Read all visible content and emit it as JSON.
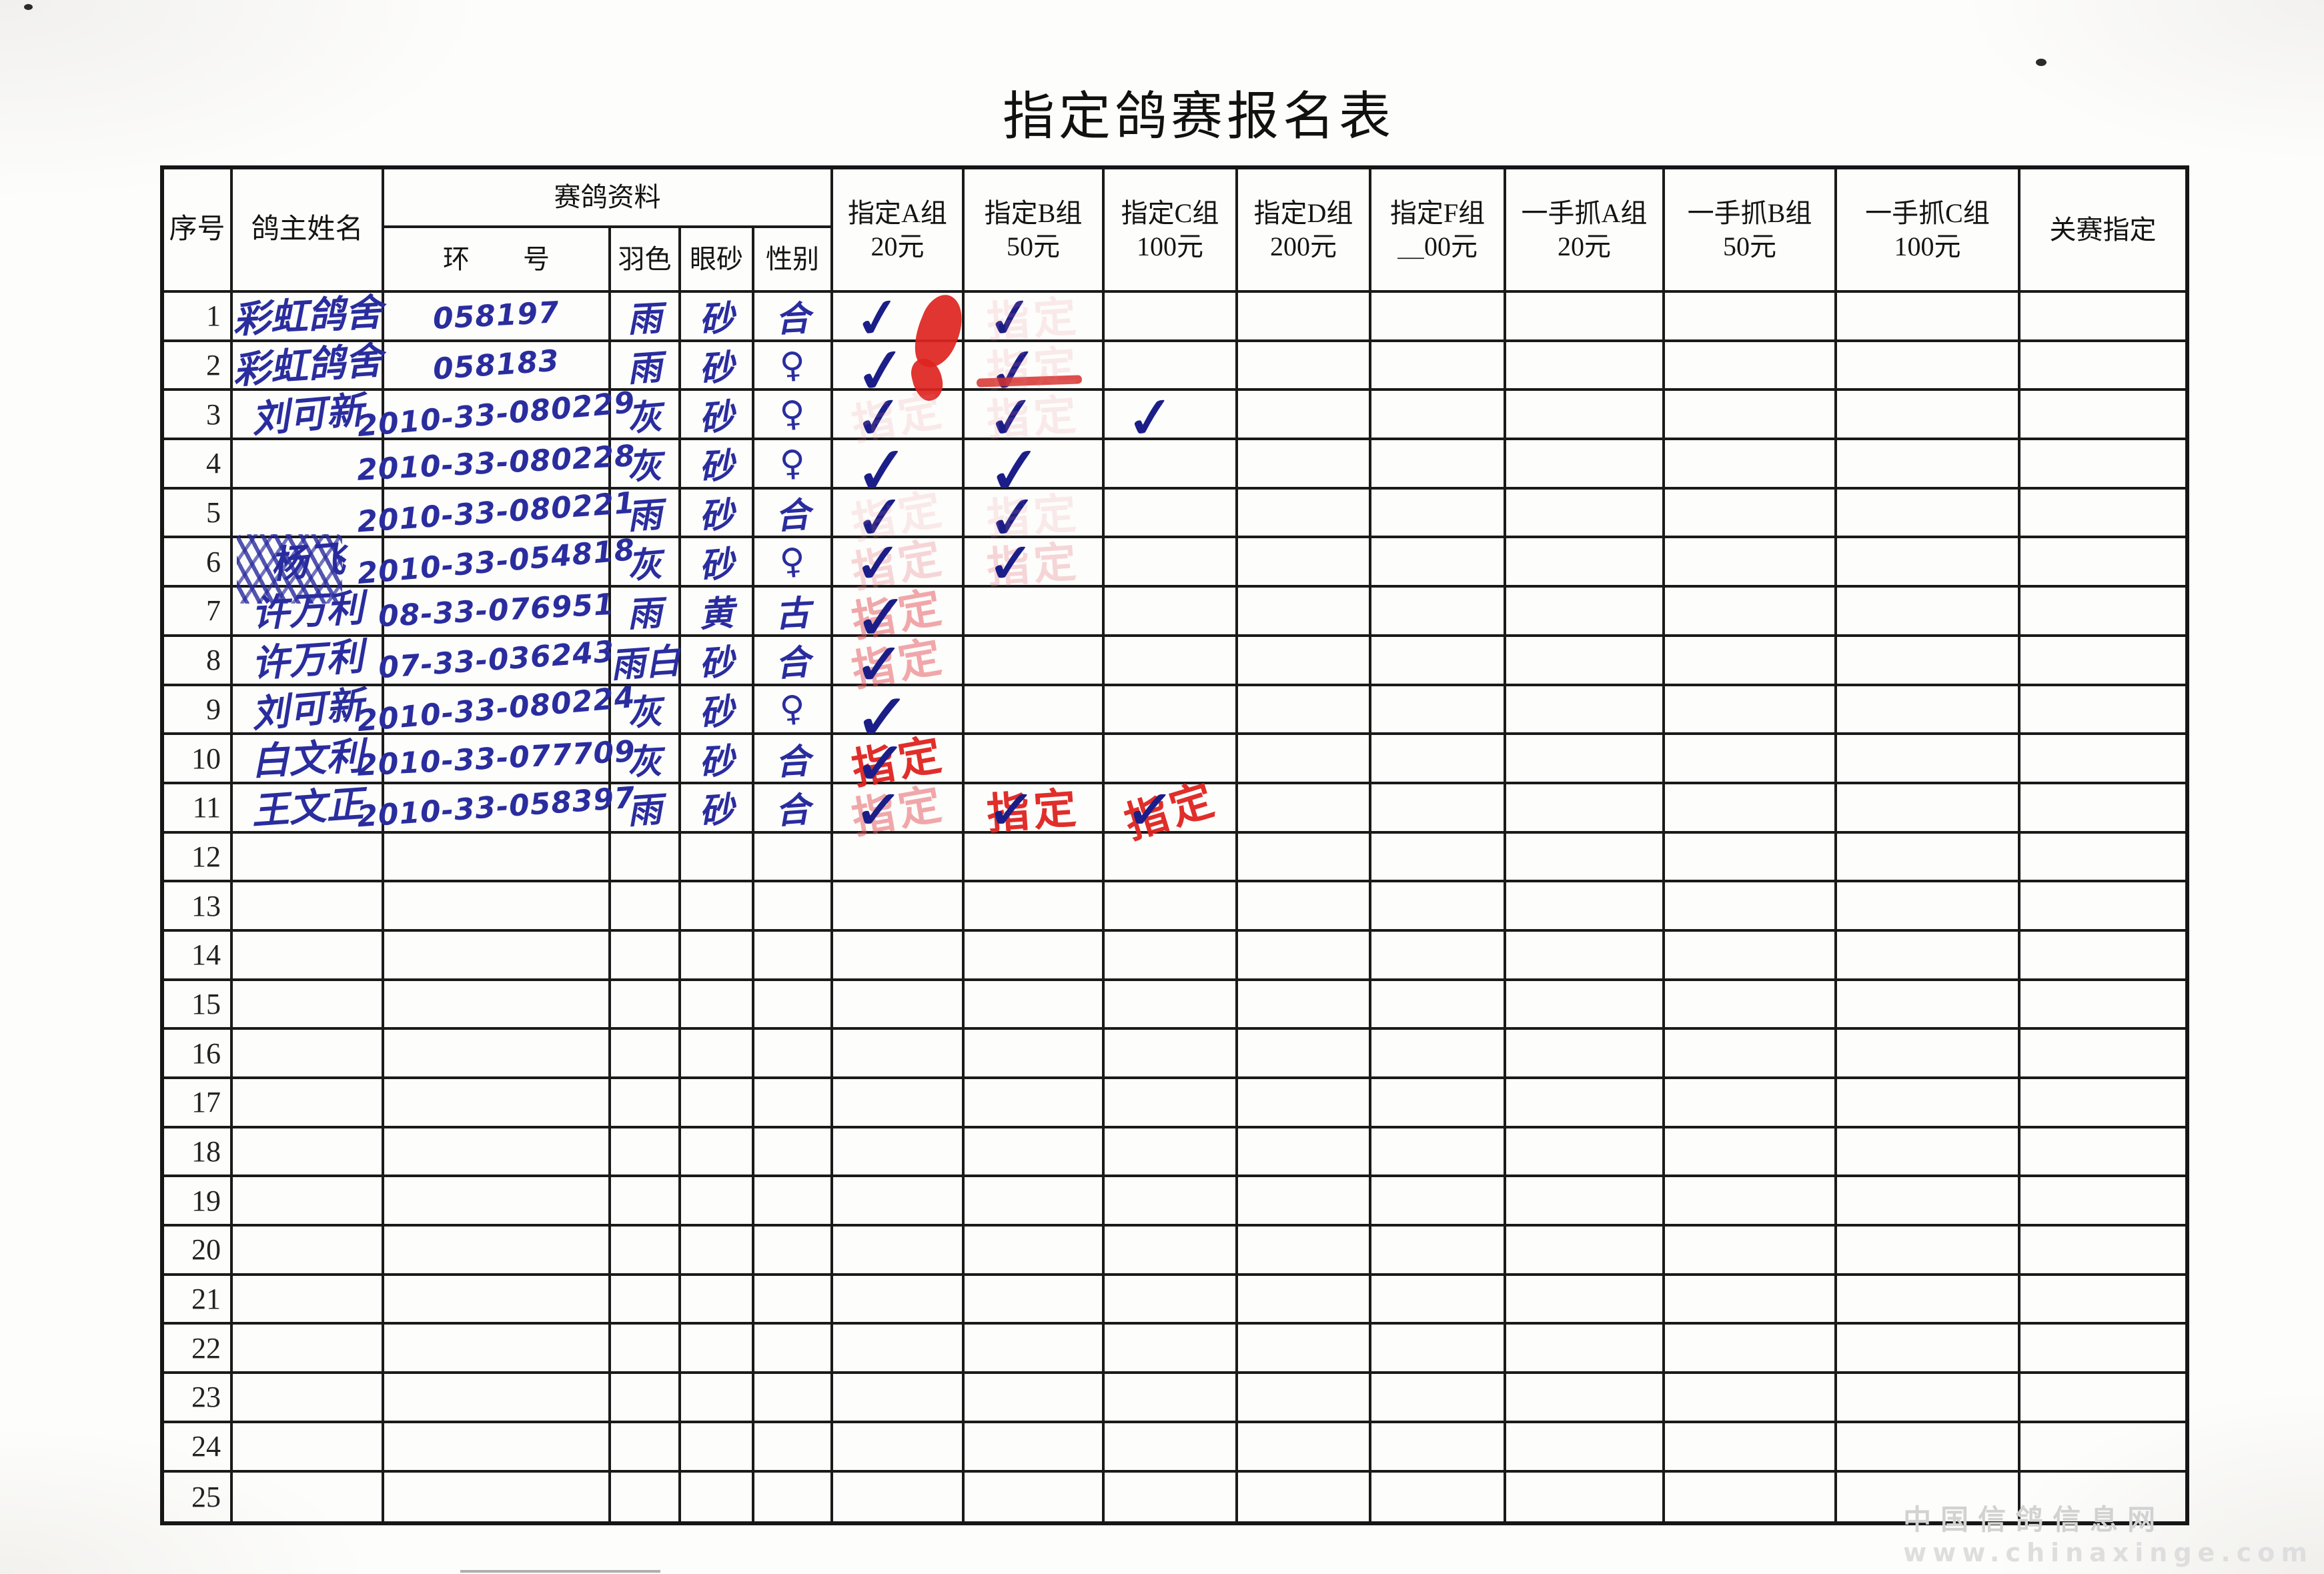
{
  "title": "指定鸽赛报名表",
  "stamp_label": "指定",
  "watermark": {
    "line1": "中国信鸽信息网",
    "line2": "www.chinaxinge.com"
  },
  "colors": {
    "ink_blue": "#2a2d9e",
    "check_blue": "#1b1e88",
    "stamp_red": "#df231f",
    "grid_line": "#1a1a1a",
    "watermark_gray": "#d2d2d2"
  },
  "table": {
    "headers": {
      "serial": "序号",
      "owner": "鸽主姓名",
      "pigeon_info_group": "赛鸽资料",
      "ring": "环　　号",
      "feather": "羽色",
      "eye": "眼砂",
      "sex": "性别",
      "money_cols": [
        {
          "line1": "指定A组",
          "line2": "20元"
        },
        {
          "line1": "指定B组",
          "line2": "50元"
        },
        {
          "line1": "指定C组",
          "line2": "100元"
        },
        {
          "line1": "指定D组",
          "line2": "200元"
        },
        {
          "line1": "指定F组",
          "line2": "＿00元"
        },
        {
          "line1": "一手抓A组",
          "line2": "20元"
        },
        {
          "line1": "一手抓B组",
          "line2": "50元"
        },
        {
          "line1": "一手抓C组",
          "line2": "100元"
        },
        {
          "line1": "关赛指定",
          "line2": ""
        }
      ]
    },
    "rows": [
      {
        "no": "1",
        "name": "彩虹鸽舍",
        "ring": "058197",
        "feather": "雨",
        "eye": "砂",
        "sex": "合",
        "marks": {
          "A": [
            "check",
            "blob"
          ],
          "B": [
            "check",
            "ghost"
          ]
        }
      },
      {
        "no": "2",
        "name": "彩虹鸽舍",
        "ring": "058183",
        "feather": "雨",
        "eye": "砂",
        "sex": "♀",
        "marks": {
          "A": [
            "check",
            "blob-sm"
          ],
          "B": [
            "check",
            "streak",
            "ghost"
          ]
        }
      },
      {
        "no": "3",
        "name": "刘可新",
        "ring": "2010-33-080229",
        "feather": "灰",
        "eye": "砂",
        "sex": "♀",
        "marks": {
          "A": [
            "check",
            "ghost"
          ],
          "B": [
            "check",
            "ghost"
          ],
          "C": [
            "check"
          ]
        }
      },
      {
        "no": "4",
        "name": "",
        "ring": "2010-33-080228",
        "feather": "灰",
        "eye": "砂",
        "sex": "♀",
        "marks": {
          "A": [
            "check"
          ],
          "B": [
            "check"
          ]
        }
      },
      {
        "no": "5",
        "name": "",
        "ring": "2010-33-080221",
        "feather": "雨",
        "eye": "砂",
        "sex": "合",
        "marks": {
          "A": [
            "check",
            "ghost"
          ],
          "B": [
            "check",
            "ghost"
          ]
        }
      },
      {
        "no": "6",
        "name": "杨飞",
        "scribbled": true,
        "ring": "2010-33-054818",
        "feather": "灰",
        "eye": "砂",
        "sex": "♀",
        "marks": {
          "A": [
            "stamp-ghost",
            "check"
          ],
          "B": [
            "stamp-ghost",
            "check"
          ]
        }
      },
      {
        "no": "7",
        "name": "许万利",
        "ring": "08-33-076951",
        "feather": "雨",
        "eye": "黄",
        "sex": "古",
        "marks": {
          "A": [
            "stamp-faint",
            "check"
          ]
        }
      },
      {
        "no": "8",
        "name": "许万利",
        "ring": "07-33-036243",
        "feather": "雨白",
        "eye": "砂",
        "sex": "合",
        "marks": {
          "A": [
            "stamp-faint",
            "check"
          ]
        }
      },
      {
        "no": "9",
        "name": "刘可新",
        "ring": "2010-33-080224",
        "feather": "灰",
        "eye": "砂",
        "sex": "♀",
        "marks": {
          "A": [
            "check"
          ]
        }
      },
      {
        "no": "10",
        "name": "白文利",
        "ring": "2010-33-077709",
        "feather": "灰",
        "eye": "砂",
        "sex": "合",
        "marks": {
          "A": [
            "stamp-bold",
            "check"
          ]
        }
      },
      {
        "no": "11",
        "name": "王文正",
        "ring": "2010-33-058397",
        "feather": "雨",
        "eye": "砂",
        "sex": "合",
        "marks": {
          "A": [
            "stamp-faint",
            "check"
          ],
          "B": [
            "stamp-bold",
            "check"
          ],
          "C": [
            "stamp-bold",
            "check"
          ]
        }
      },
      {
        "no": "12",
        "name": "",
        "ring": "",
        "feather": "",
        "eye": "",
        "sex": "",
        "marks": {}
      },
      {
        "no": "13",
        "name": "",
        "ring": "",
        "feather": "",
        "eye": "",
        "sex": "",
        "marks": {}
      },
      {
        "no": "14",
        "name": "",
        "ring": "",
        "feather": "",
        "eye": "",
        "sex": "",
        "marks": {}
      },
      {
        "no": "15",
        "name": "",
        "ring": "",
        "feather": "",
        "eye": "",
        "sex": "",
        "marks": {}
      },
      {
        "no": "16",
        "name": "",
        "ring": "",
        "feather": "",
        "eye": "",
        "sex": "",
        "marks": {}
      },
      {
        "no": "17",
        "name": "",
        "ring": "",
        "feather": "",
        "eye": "",
        "sex": "",
        "marks": {}
      },
      {
        "no": "18",
        "name": "",
        "ring": "",
        "feather": "",
        "eye": "",
        "sex": "",
        "marks": {}
      },
      {
        "no": "19",
        "name": "",
        "ring": "",
        "feather": "",
        "eye": "",
        "sex": "",
        "marks": {}
      },
      {
        "no": "20",
        "name": "",
        "ring": "",
        "feather": "",
        "eye": "",
        "sex": "",
        "marks": {}
      },
      {
        "no": "21",
        "name": "",
        "ring": "",
        "feather": "",
        "eye": "",
        "sex": "",
        "marks": {}
      },
      {
        "no": "22",
        "name": "",
        "ring": "",
        "feather": "",
        "eye": "",
        "sex": "",
        "marks": {}
      },
      {
        "no": "23",
        "name": "",
        "ring": "",
        "feather": "",
        "eye": "",
        "sex": "",
        "marks": {}
      },
      {
        "no": "24",
        "name": "",
        "ring": "",
        "feather": "",
        "eye": "",
        "sex": "",
        "marks": {}
      },
      {
        "no": "25",
        "name": "",
        "ring": "",
        "feather": "",
        "eye": "",
        "sex": "",
        "marks": {}
      }
    ]
  }
}
